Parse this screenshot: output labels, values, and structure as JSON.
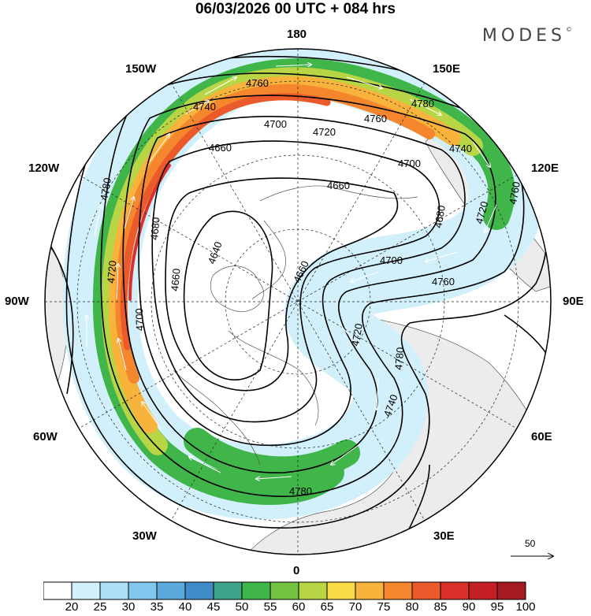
{
  "title": "06/03/2026  00 UTC  + 084 hrs",
  "brand": "MODES",
  "brand_mark": "©",
  "lon_labels": {
    "n180": "180",
    "w150": "150W",
    "e150": "150E",
    "w120": "120W",
    "e120": "120E",
    "w90": "90W",
    "e90": "90E",
    "w60": "60W",
    "e60": "60E",
    "w30": "30W",
    "e30": "30E",
    "s0": "0"
  },
  "contour_labels": [
    "4640",
    "4660",
    "4660",
    "4660",
    "4660",
    "4680",
    "4680",
    "4700",
    "4700",
    "4700",
    "4700",
    "4720",
    "4720",
    "4720",
    "4720",
    "4740",
    "4740",
    "4740",
    "4760",
    "4760",
    "4760",
    "4760",
    "4780",
    "4780",
    "4780",
    "4780"
  ],
  "wind_reference": {
    "label": "50",
    "icon": "arrow-right-icon"
  },
  "colorbar": {
    "ticks": [
      "20",
      "25",
      "30",
      "35",
      "40",
      "45",
      "50",
      "55",
      "60",
      "65",
      "70",
      "75",
      "80",
      "85",
      "90",
      "95",
      "100"
    ],
    "colors": [
      "#ffffff",
      "#d2f0fb",
      "#ade0f6",
      "#82c8ee",
      "#5ca9dd",
      "#3f8cc7",
      "#3ea489",
      "#40b64a",
      "#72c141",
      "#b7d544",
      "#f7db47",
      "#f8b33c",
      "#f4872e",
      "#ea5a2a",
      "#d9302a",
      "#c51f26",
      "#a41a20"
    ]
  }
}
